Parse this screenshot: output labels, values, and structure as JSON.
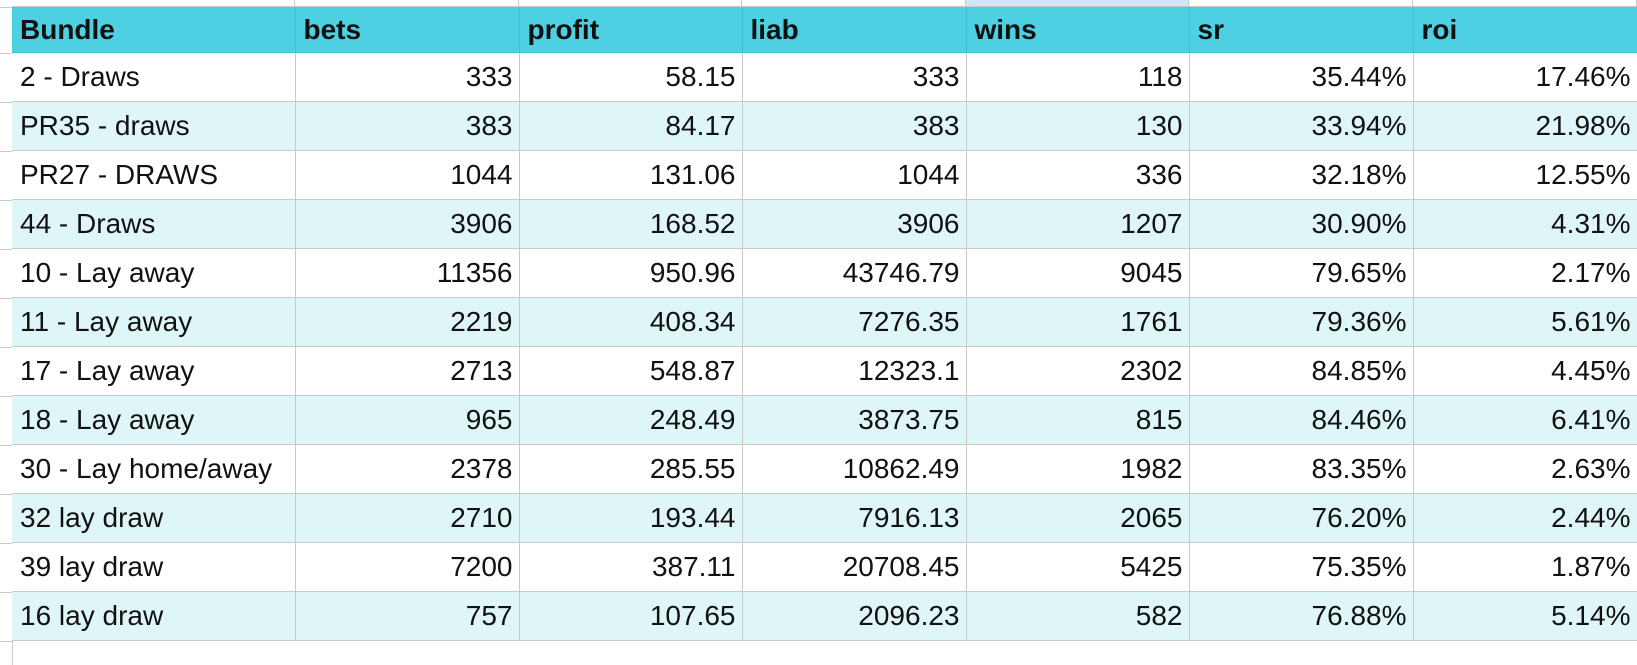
{
  "sheet": {
    "header_color": "#4dd0e1",
    "band_color": "#dff6f8",
    "columns": [
      "Bundle",
      "bets",
      "profit",
      "liab",
      "wins",
      "sr",
      "roi"
    ],
    "rows": [
      [
        "2 - Draws",
        "333",
        "58.15",
        "333",
        "118",
        "35.44%",
        "17.46%"
      ],
      [
        "PR35 - draws",
        "383",
        "84.17",
        "383",
        "130",
        "33.94%",
        "21.98%"
      ],
      [
        "PR27 - DRAWS",
        "1044",
        "131.06",
        "1044",
        "336",
        "32.18%",
        "12.55%"
      ],
      [
        "44 - Draws",
        "3906",
        "168.52",
        "3906",
        "1207",
        "30.90%",
        "4.31%"
      ],
      [
        "10 - Lay away",
        "11356",
        "950.96",
        "43746.79",
        "9045",
        "79.65%",
        "2.17%"
      ],
      [
        "11 - Lay away",
        "2219",
        "408.34",
        "7276.35",
        "1761",
        "79.36%",
        "5.61%"
      ],
      [
        "17 - Lay away",
        "2713",
        "548.87",
        "12323.1",
        "2302",
        "84.85%",
        "4.45%"
      ],
      [
        "18 - Lay away",
        "965",
        "248.49",
        "3873.75",
        "815",
        "84.46%",
        "6.41%"
      ],
      [
        "30 - Lay home/away",
        "2378",
        "285.55",
        "10862.49",
        "1982",
        "83.35%",
        "2.63%"
      ],
      [
        "32 lay draw",
        "2710",
        "193.44",
        "7916.13",
        "2065",
        "76.20%",
        "2.44%"
      ],
      [
        "39 lay draw",
        "7200",
        "387.11",
        "20708.45",
        "5425",
        "75.35%",
        "1.87%"
      ],
      [
        "16 lay draw",
        "757",
        "107.65",
        "2096.23",
        "582",
        "76.88%",
        "5.14%"
      ]
    ]
  }
}
